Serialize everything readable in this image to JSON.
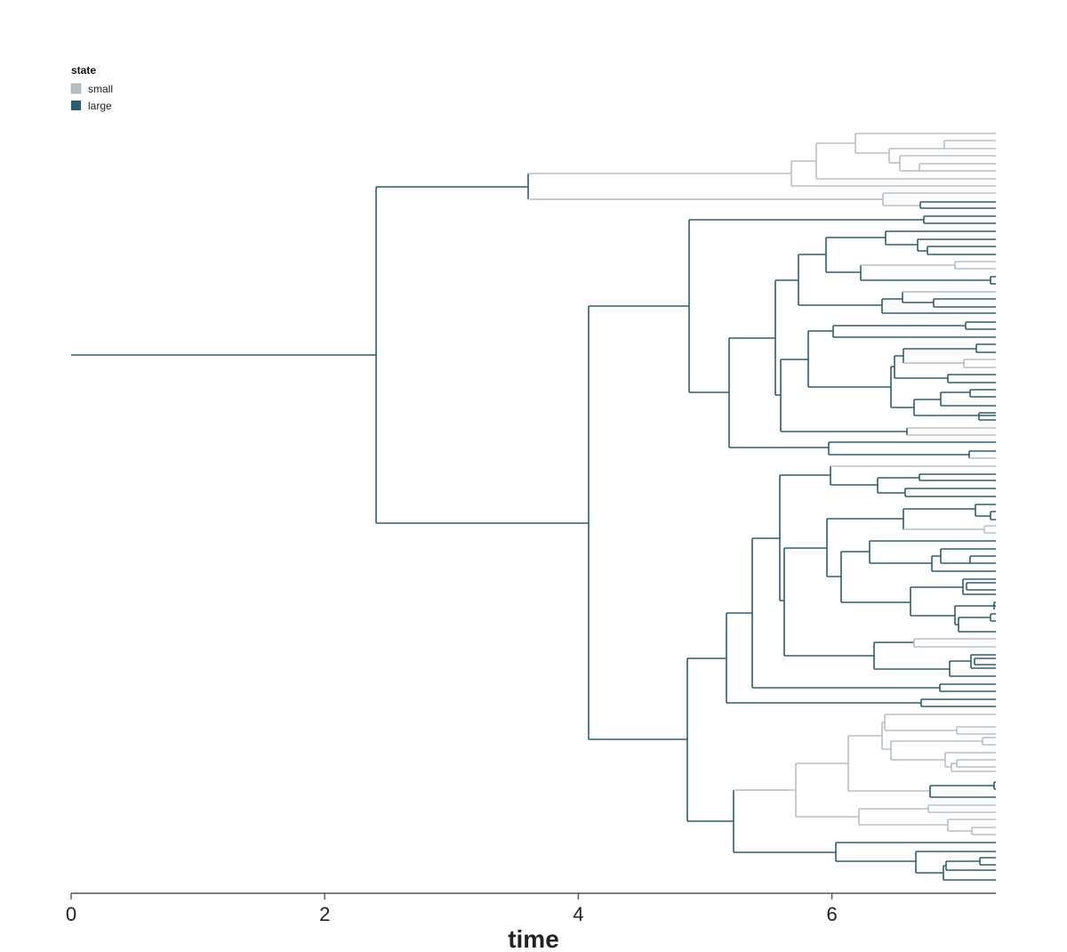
{
  "legend": {
    "title": "state",
    "items": [
      {
        "label": "small",
        "color": "#b6c0c7"
      },
      {
        "label": "large",
        "color": "#2e5d6e"
      }
    ]
  },
  "axis": {
    "label": "time",
    "ticks": [
      "0",
      "2",
      "4",
      "6"
    ],
    "tick_values": [
      0,
      2,
      4,
      6
    ],
    "range": [
      0,
      7.3
    ]
  },
  "colors": {
    "small": "#b6c0c7",
    "large": "#2e5d6e",
    "axis": "#555555"
  },
  "tree": {
    "root_branch_time": 2.42,
    "tip_time": 7.3,
    "tip_count": 100,
    "tip_states_large": "first clade mostly small, majority of tips large, lower clade mostly small"
  }
}
